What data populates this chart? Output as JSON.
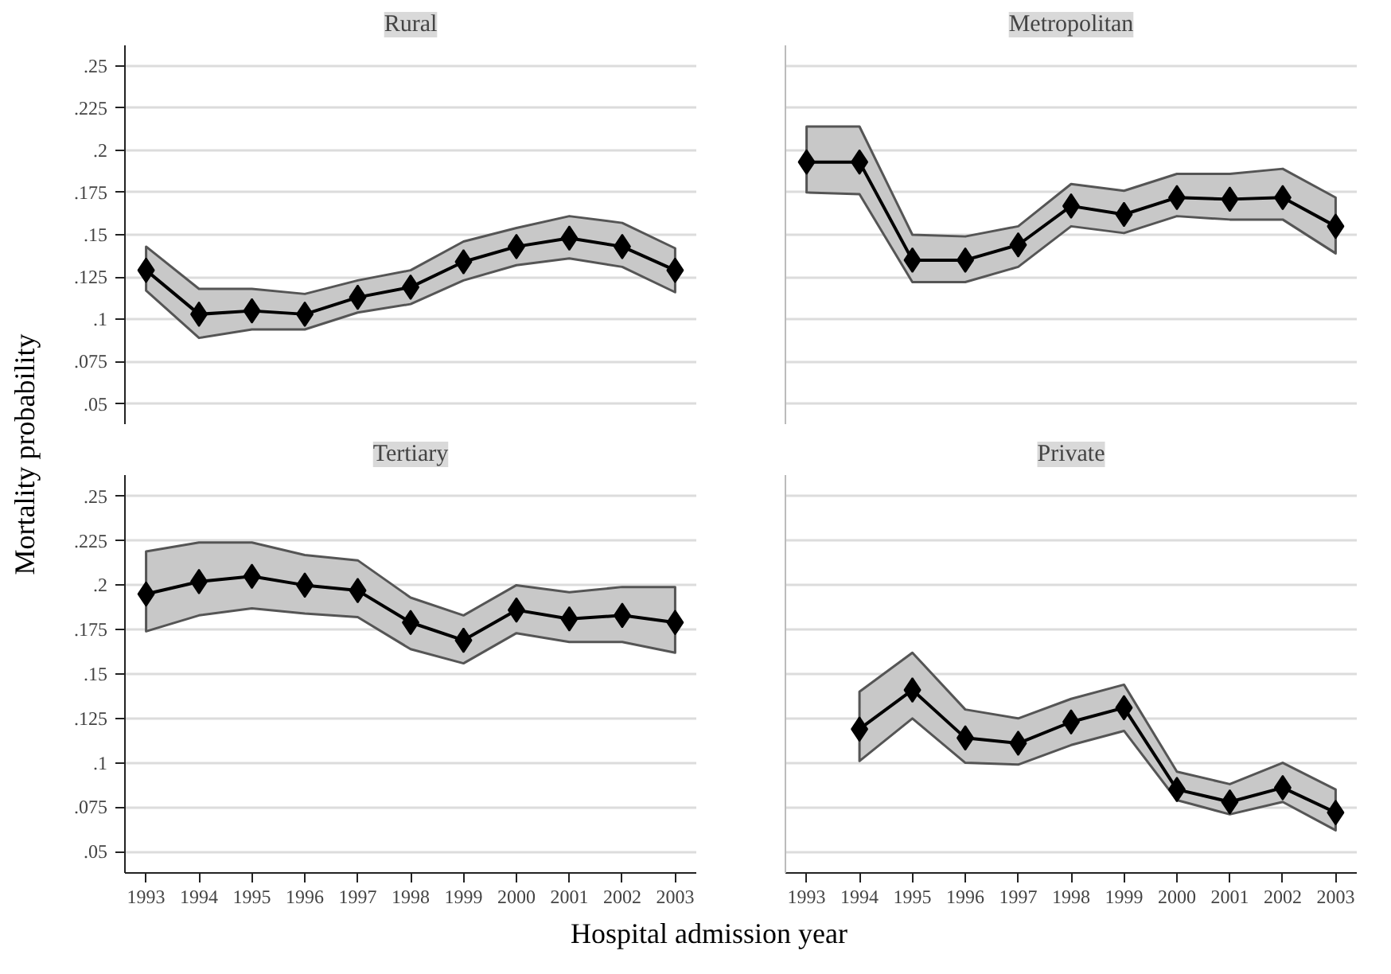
{
  "chart_data": [
    {
      "type": "line",
      "title": "Rural",
      "ylabel": "Mortality probability",
      "x": [
        1993,
        1994,
        1995,
        1996,
        1997,
        1998,
        1999,
        2000,
        2001,
        2002,
        2003
      ],
      "xlim": [
        1992.6,
        2003.4
      ],
      "xticks": [
        1993,
        1994,
        1995,
        1996,
        1997,
        1998,
        1999,
        2000,
        2001,
        2002,
        2003
      ],
      "ylim": [
        0.038,
        0.262
      ],
      "yticks": [
        {
          "value": 0.05,
          "label": ".05"
        },
        {
          "value": 0.075,
          "label": ".075"
        },
        {
          "value": 0.1,
          "label": ".1"
        },
        {
          "value": 0.125,
          "label": ".125"
        },
        {
          "value": 0.15,
          "label": ".15"
        },
        {
          "value": 0.175,
          "label": ".175"
        },
        {
          "value": 0.2,
          "label": ".2"
        },
        {
          "value": 0.225,
          "label": ".225"
        },
        {
          "value": 0.25,
          "label": ".25"
        }
      ],
      "grid": "y",
      "marker": "diamond",
      "tick_labels": "y",
      "series": [
        {
          "color": "#000000",
          "values": [
            0.129,
            0.103,
            0.105,
            0.103,
            0.113,
            0.119,
            0.134,
            0.143,
            0.148,
            0.143,
            0.129
          ],
          "upper": [
            0.143,
            0.118,
            0.118,
            0.115,
            0.123,
            0.129,
            0.146,
            0.154,
            0.161,
            0.157,
            0.142
          ],
          "lower": [
            0.117,
            0.089,
            0.094,
            0.094,
            0.104,
            0.109,
            0.123,
            0.132,
            0.136,
            0.131,
            0.116
          ]
        }
      ]
    },
    {
      "type": "line",
      "title": "Metropolitan",
      "x": [
        1993,
        1994,
        1995,
        1996,
        1997,
        1998,
        1999,
        2000,
        2001,
        2002,
        2003
      ],
      "xlim": [
        1992.6,
        2003.4
      ],
      "xticks": [
        1993,
        1994,
        1995,
        1996,
        1997,
        1998,
        1999,
        2000,
        2001,
        2002,
        2003
      ],
      "ylim": [
        0.038,
        0.262
      ],
      "yticks": [
        0.05,
        0.075,
        0.1,
        0.125,
        0.15,
        0.175,
        0.2,
        0.225,
        0.25
      ],
      "grid": "y",
      "marker": "diamond",
      "tick_labels": false,
      "series": [
        {
          "color": "#000000",
          "values": [
            0.193,
            0.193,
            0.135,
            0.135,
            0.144,
            0.167,
            0.162,
            0.172,
            0.171,
            0.172,
            0.155
          ],
          "upper": [
            0.214,
            0.214,
            0.15,
            0.149,
            0.155,
            0.18,
            0.176,
            0.186,
            0.186,
            0.189,
            0.172
          ],
          "lower": [
            0.175,
            0.174,
            0.122,
            0.122,
            0.131,
            0.155,
            0.151,
            0.161,
            0.159,
            0.159,
            0.139
          ]
        }
      ]
    },
    {
      "type": "line",
      "title": "Tertiary",
      "xlabel": "Hospital admission year",
      "x": [
        1993,
        1994,
        1995,
        1996,
        1997,
        1998,
        1999,
        2000,
        2001,
        2002,
        2003
      ],
      "xlim": [
        1992.6,
        2003.4
      ],
      "xticks": [
        1993,
        1994,
        1995,
        1996,
        1997,
        1998,
        1999,
        2000,
        2001,
        2002,
        2003
      ],
      "ylim": [
        0.038,
        0.262
      ],
      "yticks": [
        {
          "value": 0.05,
          "label": ".05"
        },
        {
          "value": 0.075,
          "label": ".075"
        },
        {
          "value": 0.1,
          "label": ".1"
        },
        {
          "value": 0.125,
          "label": ".125"
        },
        {
          "value": 0.15,
          "label": ".15"
        },
        {
          "value": 0.175,
          "label": ".175"
        },
        {
          "value": 0.2,
          "label": ".2"
        },
        {
          "value": 0.225,
          "label": ".225"
        },
        {
          "value": 0.25,
          "label": ".25"
        }
      ],
      "grid": "y",
      "marker": "diamond",
      "series": [
        {
          "color": "#000000",
          "values": [
            0.195,
            0.202,
            0.205,
            0.2,
            0.197,
            0.179,
            0.169,
            0.186,
            0.181,
            0.183,
            0.179
          ],
          "upper": [
            0.219,
            0.224,
            0.224,
            0.217,
            0.214,
            0.193,
            0.183,
            0.2,
            0.196,
            0.199,
            0.199
          ],
          "lower": [
            0.174,
            0.183,
            0.187,
            0.184,
            0.182,
            0.164,
            0.156,
            0.173,
            0.168,
            0.168,
            0.162
          ]
        }
      ]
    },
    {
      "type": "line",
      "title": "Private",
      "xlim": [
        1992.6,
        2003.4
      ],
      "xticks": [
        1993,
        1994,
        1995,
        1996,
        1997,
        1998,
        1999,
        2000,
        2001,
        2002,
        2003
      ],
      "ylim": [
        0.038,
        0.262
      ],
      "yticks": [
        0.05,
        0.075,
        0.1,
        0.125,
        0.15,
        0.175,
        0.2,
        0.225,
        0.25
      ],
      "grid": "y",
      "marker": "diamond",
      "tick_labels": "x",
      "series": [
        {
          "color": "#000000",
          "x": [
            1994,
            1995,
            1996,
            1997,
            1998,
            1999,
            2000,
            2001,
            2002,
            2003
          ],
          "values": [
            0.119,
            0.141,
            0.114,
            0.111,
            0.123,
            0.131,
            0.085,
            0.078,
            0.086,
            0.072
          ],
          "upper": [
            0.14,
            0.162,
            0.13,
            0.125,
            0.136,
            0.144,
            0.095,
            0.088,
            0.1,
            0.085
          ],
          "lower": [
            0.101,
            0.125,
            0.1,
            0.099,
            0.11,
            0.118,
            0.079,
            0.071,
            0.078,
            0.062
          ]
        }
      ]
    }
  ]
}
